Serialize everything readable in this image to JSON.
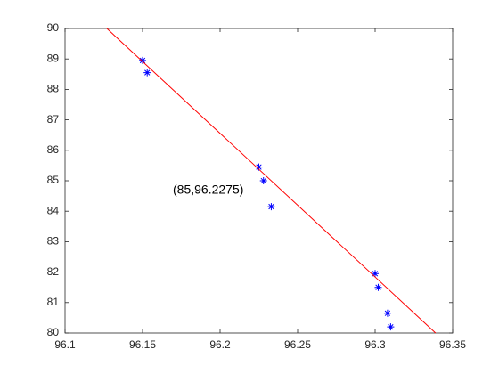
{
  "chart_data": {
    "type": "scatter",
    "annotation": "(85,96.2275)",
    "xlim": [
      96.1,
      96.35
    ],
    "xticks": [
      96.1,
      96.15,
      96.2,
      96.25,
      96.3,
      96.35
    ],
    "ylim": [
      80,
      90
    ],
    "yticks": [
      80,
      81,
      82,
      83,
      84,
      85,
      86,
      87,
      88,
      89,
      90
    ],
    "series": [
      {
        "type": "scatter",
        "marker": "*",
        "color": "#0000ff",
        "x": [
          96.15,
          96.153,
          96.225,
          96.228,
          96.233,
          96.3,
          96.302,
          96.308,
          96.31
        ],
        "values": [
          88.95,
          88.55,
          85.45,
          85.0,
          84.15,
          81.95,
          81.5,
          80.65,
          80.2
        ]
      },
      {
        "type": "line",
        "color": "#ff0000",
        "x": [
          96.127,
          96.339
        ],
        "values": [
          90,
          80
        ]
      }
    ]
  }
}
